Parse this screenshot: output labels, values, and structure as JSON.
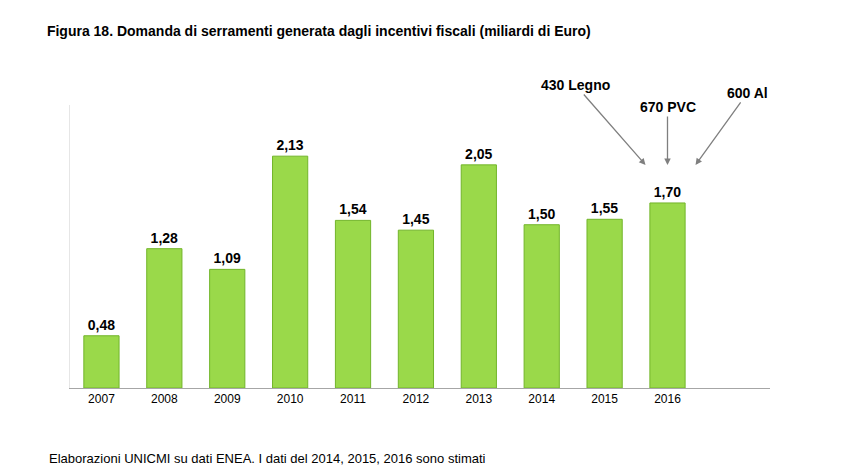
{
  "chart_data": {
    "type": "bar",
    "title": "Figura 18. Domanda di serramenti generata dagli incentivi fiscali (miliardi di Euro)",
    "categories": [
      "2007",
      "2008",
      "2009",
      "2010",
      "2011",
      "2012",
      "2013",
      "2014",
      "2015",
      "2016"
    ],
    "values": [
      0.48,
      1.28,
      1.09,
      2.13,
      1.54,
      1.45,
      2.05,
      1.5,
      1.55,
      1.7
    ],
    "value_labels": [
      "0,48",
      "1,28",
      "1,09",
      "2,13",
      "1,54",
      "1,45",
      "2,05",
      "1,50",
      "1,55",
      "1,70"
    ],
    "color": "#9ad94a",
    "ylim": [
      0,
      2.6
    ],
    "grid": false,
    "data_labels": true,
    "tick_labels": "x",
    "annotations": [
      {
        "text": "430 Legno",
        "category": "2016"
      },
      {
        "text": "670 PVC",
        "category": "2016"
      },
      {
        "text": "600 Al",
        "category": "2016"
      }
    ],
    "footnote": "Elaborazioni UNICMI su dati ENEA. I dati del 2014, 2015, 2016 sono stimati"
  }
}
